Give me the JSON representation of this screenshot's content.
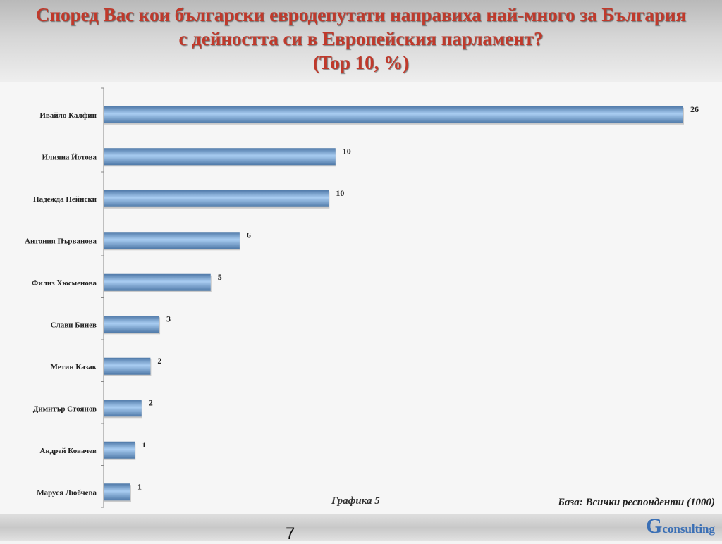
{
  "header": {
    "title_line1": "Според Вас кои български евродепутати направиха най-много за България",
    "title_line2": "с дейността си в Европейския парламент?",
    "title_line3": "(Top 10, %)"
  },
  "footer": {
    "graph_label": "Графика 5",
    "base_label": "База:  Всички респонденти (1000)",
    "page_number": "7",
    "logo_letter": "G",
    "logo_rest": "consulting"
  },
  "colors": {
    "title": "#c0392b",
    "bar_light": "#a9cdf2",
    "bar_dark": "#4f79a8",
    "logo": "#3a6fb5"
  },
  "chart_data": {
    "type": "bar",
    "orientation": "horizontal",
    "title": "Според Вас кои български евродепутати направиха най-много за България с дейността си в Европейския парламент? (Top 10, %)",
    "categories": [
      "Ивайло Калфин",
      "Илияна Йотова",
      "Надежда Нейнски",
      "Антония Първанова",
      "Филиз Хюсменова",
      "Слави Бинев",
      "Метин Казак",
      "Димитър Стоянов",
      "Андрей Ковачев",
      "Маруся Любчева"
    ],
    "values": [
      26,
      10,
      10,
      6,
      5,
      3,
      2,
      2,
      1,
      1
    ],
    "value_labels": [
      "26",
      "10",
      "10",
      "6",
      "5",
      "3",
      "2",
      "2",
      "1",
      "1"
    ],
    "bar_extents": [
      26,
      10.4,
      10.1,
      6.1,
      4.8,
      2.5,
      2.1,
      1.7,
      1.4,
      1.2
    ],
    "xlim": [
      0,
      26
    ],
    "xlabel": "",
    "ylabel": "",
    "grid": false,
    "legend": "none"
  }
}
